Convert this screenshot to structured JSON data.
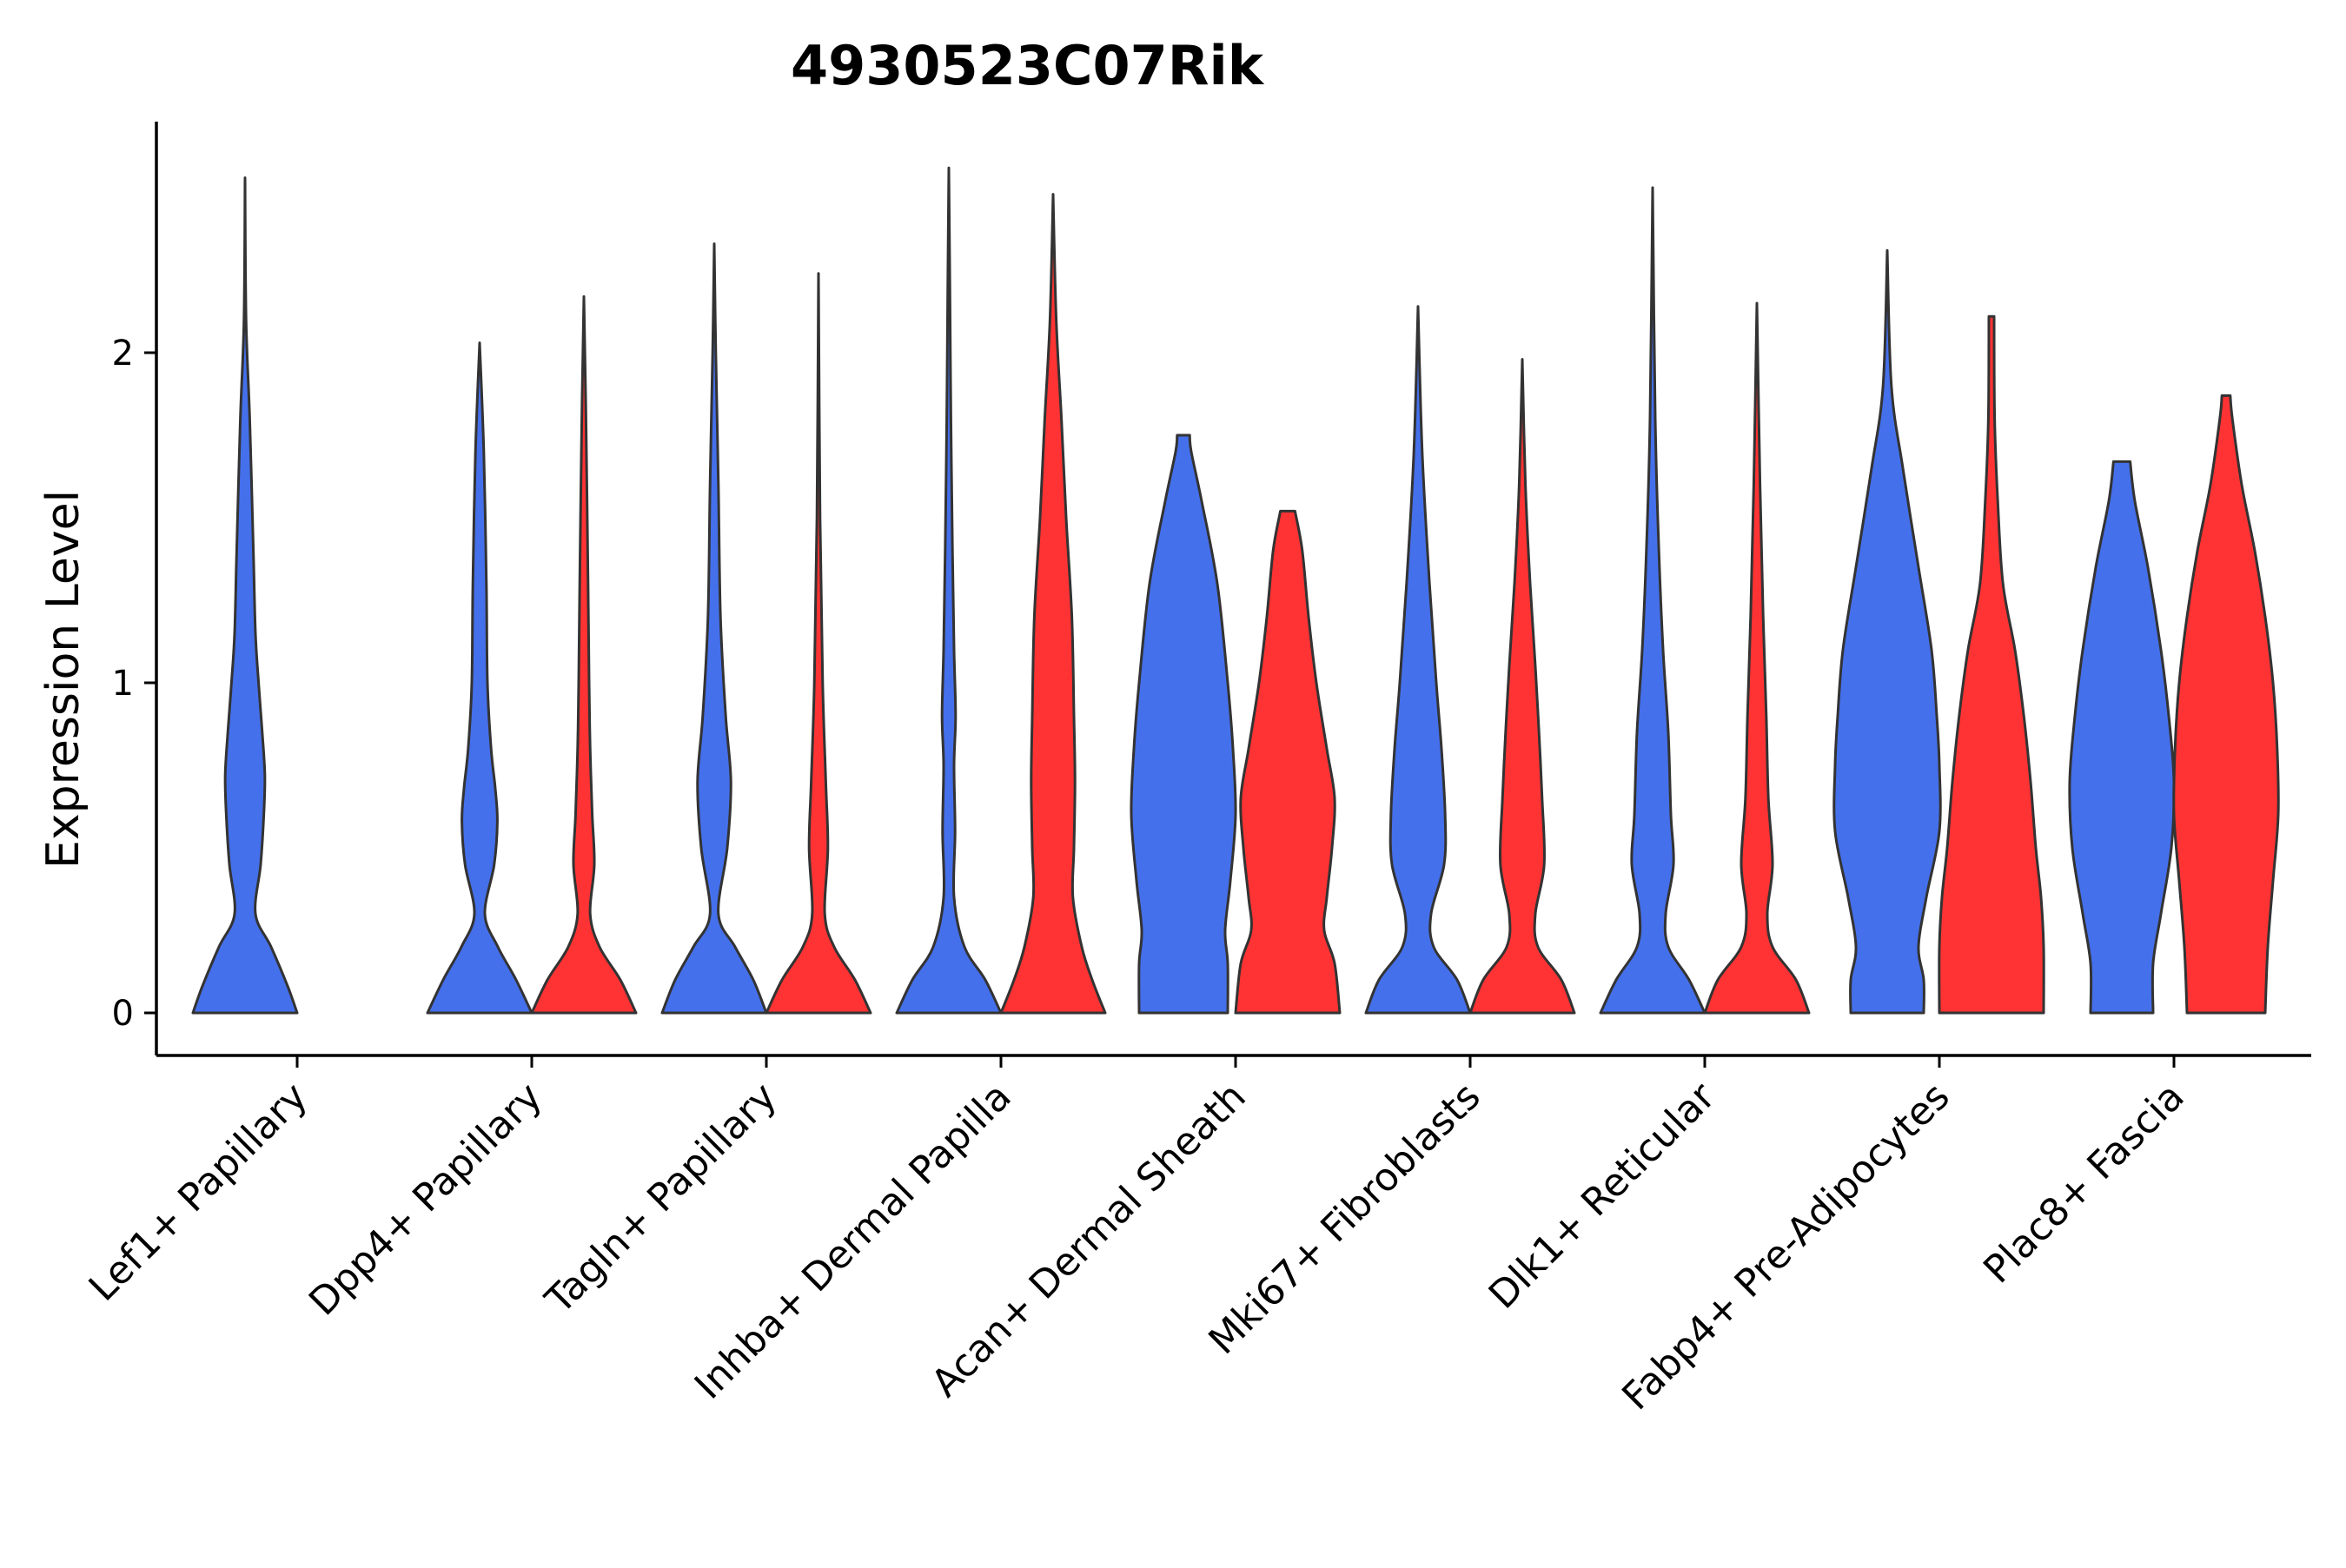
{
  "chart_data": {
    "type": "violin",
    "title": "4930523C07Rik",
    "xlabel": "",
    "ylabel": "Expression Level",
    "ylim": [
      -0.13,
      2.7
    ],
    "yticks": [
      0,
      1,
      2
    ],
    "grid": false,
    "legend": "none",
    "colors": {
      "group_a": "#4570EB",
      "group_b": "#FF3333",
      "outline": "#333333"
    },
    "categories": [
      "Lef1+ Papillary",
      "Dpp4+ Papillary",
      "Tagln+ Papillary",
      "Inhba+ Dermal Papilla",
      "Acan+ Dermal Sheath",
      "Mki67+ Fibroblasts",
      "Dlk1+ Reticular",
      "Fabp4+ Pre-Adipocytes",
      "Plac8+ Fascia"
    ],
    "violins": [
      {
        "category": "Lef1+ Papillary",
        "group": "a",
        "max": 2.53,
        "profile": [
          [
            0,
            1.0
          ],
          [
            0.08,
            0.82
          ],
          [
            0.2,
            0.5
          ],
          [
            0.3,
            0.2
          ],
          [
            0.45,
            0.3
          ],
          [
            0.6,
            0.36
          ],
          [
            0.72,
            0.38
          ],
          [
            0.85,
            0.33
          ],
          [
            1.0,
            0.26
          ],
          [
            1.15,
            0.2
          ],
          [
            1.4,
            0.16
          ],
          [
            1.8,
            0.09
          ],
          [
            2.1,
            0.02
          ],
          [
            2.53,
            0.0
          ]
        ]
      },
      {
        "category": "Dpp4+ Papillary",
        "group": "a",
        "max": 2.03,
        "profile": [
          [
            0,
            1.0
          ],
          [
            0.1,
            0.7
          ],
          [
            0.2,
            0.35
          ],
          [
            0.3,
            0.1
          ],
          [
            0.45,
            0.28
          ],
          [
            0.58,
            0.34
          ],
          [
            0.68,
            0.3
          ],
          [
            0.8,
            0.22
          ],
          [
            1.0,
            0.15
          ],
          [
            1.3,
            0.13
          ],
          [
            1.7,
            0.08
          ],
          [
            2.03,
            0.0
          ]
        ]
      },
      {
        "category": "Dpp4+ Papillary",
        "group": "b",
        "max": 2.17,
        "profile": [
          [
            0,
            1.0
          ],
          [
            0.1,
            0.7
          ],
          [
            0.2,
            0.3
          ],
          [
            0.3,
            0.12
          ],
          [
            0.45,
            0.2
          ],
          [
            0.6,
            0.16
          ],
          [
            0.8,
            0.12
          ],
          [
            1.0,
            0.1
          ],
          [
            1.3,
            0.08
          ],
          [
            1.8,
            0.04
          ],
          [
            2.17,
            0.0
          ]
        ]
      },
      {
        "category": "Tagln+ Papillary",
        "group": "a",
        "max": 2.33,
        "profile": [
          [
            0,
            1.0
          ],
          [
            0.1,
            0.75
          ],
          [
            0.2,
            0.4
          ],
          [
            0.3,
            0.08
          ],
          [
            0.5,
            0.25
          ],
          [
            0.7,
            0.32
          ],
          [
            0.9,
            0.22
          ],
          [
            1.2,
            0.12
          ],
          [
            1.6,
            0.08
          ],
          [
            2.0,
            0.03
          ],
          [
            2.33,
            0.0
          ]
        ]
      },
      {
        "category": "Tagln+ Papillary",
        "group": "b",
        "max": 2.24,
        "profile": [
          [
            0,
            1.0
          ],
          [
            0.1,
            0.7
          ],
          [
            0.2,
            0.3
          ],
          [
            0.3,
            0.12
          ],
          [
            0.5,
            0.18
          ],
          [
            0.7,
            0.14
          ],
          [
            1.0,
            0.08
          ],
          [
            1.5,
            0.03
          ],
          [
            2.24,
            0.0
          ]
        ]
      },
      {
        "category": "Inhba+ Dermal Papilla",
        "group": "a",
        "max": 2.56,
        "profile": [
          [
            0,
            1.0
          ],
          [
            0.1,
            0.7
          ],
          [
            0.2,
            0.3
          ],
          [
            0.35,
            0.1
          ],
          [
            0.55,
            0.12
          ],
          [
            0.75,
            0.1
          ],
          [
            0.9,
            0.13
          ],
          [
            1.1,
            0.1
          ],
          [
            1.4,
            0.07
          ],
          [
            1.8,
            0.04
          ],
          [
            2.2,
            0.02
          ],
          [
            2.56,
            0.0
          ]
        ]
      },
      {
        "category": "Inhba+ Dermal Papilla",
        "group": "b",
        "max": 2.48,
        "profile": [
          [
            0,
            1.0
          ],
          [
            0.1,
            0.75
          ],
          [
            0.2,
            0.55
          ],
          [
            0.35,
            0.38
          ],
          [
            0.5,
            0.4
          ],
          [
            0.7,
            0.42
          ],
          [
            0.9,
            0.4
          ],
          [
            1.2,
            0.36
          ],
          [
            1.5,
            0.25
          ],
          [
            1.8,
            0.16
          ],
          [
            2.1,
            0.06
          ],
          [
            2.48,
            0.0
          ]
        ]
      },
      {
        "category": "Acan+ Dermal Sheath",
        "group": "a",
        "max": 1.75,
        "profile": [
          [
            0,
            0.85
          ],
          [
            0.15,
            0.85
          ],
          [
            0.25,
            0.8
          ],
          [
            0.4,
            0.9
          ],
          [
            0.6,
            1.0
          ],
          [
            0.8,
            0.95
          ],
          [
            1.0,
            0.85
          ],
          [
            1.3,
            0.65
          ],
          [
            1.55,
            0.35
          ],
          [
            1.7,
            0.15
          ],
          [
            1.75,
            0.12
          ]
        ]
      },
      {
        "category": "Acan+ Dermal Sheath",
        "group": "b",
        "max": 1.52,
        "profile": [
          [
            0,
            1.0
          ],
          [
            0.15,
            0.9
          ],
          [
            0.25,
            0.7
          ],
          [
            0.35,
            0.75
          ],
          [
            0.5,
            0.85
          ],
          [
            0.65,
            0.9
          ],
          [
            0.8,
            0.75
          ],
          [
            1.0,
            0.55
          ],
          [
            1.2,
            0.4
          ],
          [
            1.4,
            0.28
          ],
          [
            1.52,
            0.14
          ]
        ]
      },
      {
        "category": "Mki67+ Fibroblasts",
        "group": "a",
        "max": 2.14,
        "profile": [
          [
            0,
            1.0
          ],
          [
            0.1,
            0.75
          ],
          [
            0.2,
            0.3
          ],
          [
            0.3,
            0.25
          ],
          [
            0.45,
            0.5
          ],
          [
            0.6,
            0.52
          ],
          [
            0.8,
            0.45
          ],
          [
            1.0,
            0.35
          ],
          [
            1.3,
            0.22
          ],
          [
            1.7,
            0.08
          ],
          [
            2.14,
            0.0
          ]
        ]
      },
      {
        "category": "Mki67+ Fibroblasts",
        "group": "b",
        "max": 1.98,
        "profile": [
          [
            0,
            1.0
          ],
          [
            0.1,
            0.75
          ],
          [
            0.2,
            0.3
          ],
          [
            0.3,
            0.25
          ],
          [
            0.45,
            0.42
          ],
          [
            0.65,
            0.38
          ],
          [
            0.85,
            0.32
          ],
          [
            1.05,
            0.25
          ],
          [
            1.3,
            0.15
          ],
          [
            1.6,
            0.06
          ],
          [
            1.98,
            0.0
          ]
        ]
      },
      {
        "category": "Dlk1+ Reticular",
        "group": "a",
        "max": 2.5,
        "profile": [
          [
            0,
            1.0
          ],
          [
            0.1,
            0.7
          ],
          [
            0.2,
            0.3
          ],
          [
            0.3,
            0.25
          ],
          [
            0.45,
            0.4
          ],
          [
            0.6,
            0.35
          ],
          [
            0.85,
            0.3
          ],
          [
            1.1,
            0.2
          ],
          [
            1.4,
            0.12
          ],
          [
            1.8,
            0.05
          ],
          [
            2.5,
            0.0
          ]
        ]
      },
      {
        "category": "Dlk1+ Reticular",
        "group": "b",
        "max": 2.15,
        "profile": [
          [
            0,
            1.0
          ],
          [
            0.1,
            0.75
          ],
          [
            0.2,
            0.3
          ],
          [
            0.3,
            0.2
          ],
          [
            0.45,
            0.3
          ],
          [
            0.65,
            0.22
          ],
          [
            0.9,
            0.18
          ],
          [
            1.2,
            0.12
          ],
          [
            1.6,
            0.06
          ],
          [
            2.15,
            0.0
          ]
        ]
      },
      {
        "category": "Fabp4+ Pre-Adipocytes",
        "group": "a",
        "max": 2.31,
        "profile": [
          [
            0,
            0.7
          ],
          [
            0.1,
            0.7
          ],
          [
            0.2,
            0.6
          ],
          [
            0.35,
            0.75
          ],
          [
            0.55,
            1.0
          ],
          [
            0.75,
            1.0
          ],
          [
            0.9,
            0.95
          ],
          [
            1.1,
            0.85
          ],
          [
            1.35,
            0.6
          ],
          [
            1.65,
            0.3
          ],
          [
            1.9,
            0.08
          ],
          [
            2.31,
            0.0
          ]
        ]
      },
      {
        "category": "Fabp4+ Pre-Adipocytes",
        "group": "b",
        "max": 2.11,
        "profile": [
          [
            0,
            1.0
          ],
          [
            0.2,
            1.0
          ],
          [
            0.35,
            0.95
          ],
          [
            0.5,
            0.85
          ],
          [
            0.7,
            0.75
          ],
          [
            0.9,
            0.62
          ],
          [
            1.1,
            0.45
          ],
          [
            1.3,
            0.22
          ],
          [
            1.55,
            0.12
          ],
          [
            1.8,
            0.06
          ],
          [
            2.11,
            0.05
          ]
        ]
      },
      {
        "category": "Plac8+ Fascia",
        "group": "a",
        "max": 1.67,
        "profile": [
          [
            0,
            0.6
          ],
          [
            0.15,
            0.6
          ],
          [
            0.3,
            0.75
          ],
          [
            0.5,
            0.95
          ],
          [
            0.7,
            1.0
          ],
          [
            0.9,
            0.9
          ],
          [
            1.1,
            0.75
          ],
          [
            1.35,
            0.5
          ],
          [
            1.55,
            0.25
          ],
          [
            1.67,
            0.16
          ]
        ]
      },
      {
        "category": "Plac8+ Fascia",
        "group": "b",
        "max": 1.87,
        "profile": [
          [
            0,
            0.75
          ],
          [
            0.2,
            0.8
          ],
          [
            0.4,
            0.9
          ],
          [
            0.6,
            1.0
          ],
          [
            0.8,
            0.98
          ],
          [
            1.0,
            0.9
          ],
          [
            1.2,
            0.75
          ],
          [
            1.4,
            0.55
          ],
          [
            1.6,
            0.3
          ],
          [
            1.8,
            0.12
          ],
          [
            1.87,
            0.08
          ]
        ]
      }
    ]
  }
}
